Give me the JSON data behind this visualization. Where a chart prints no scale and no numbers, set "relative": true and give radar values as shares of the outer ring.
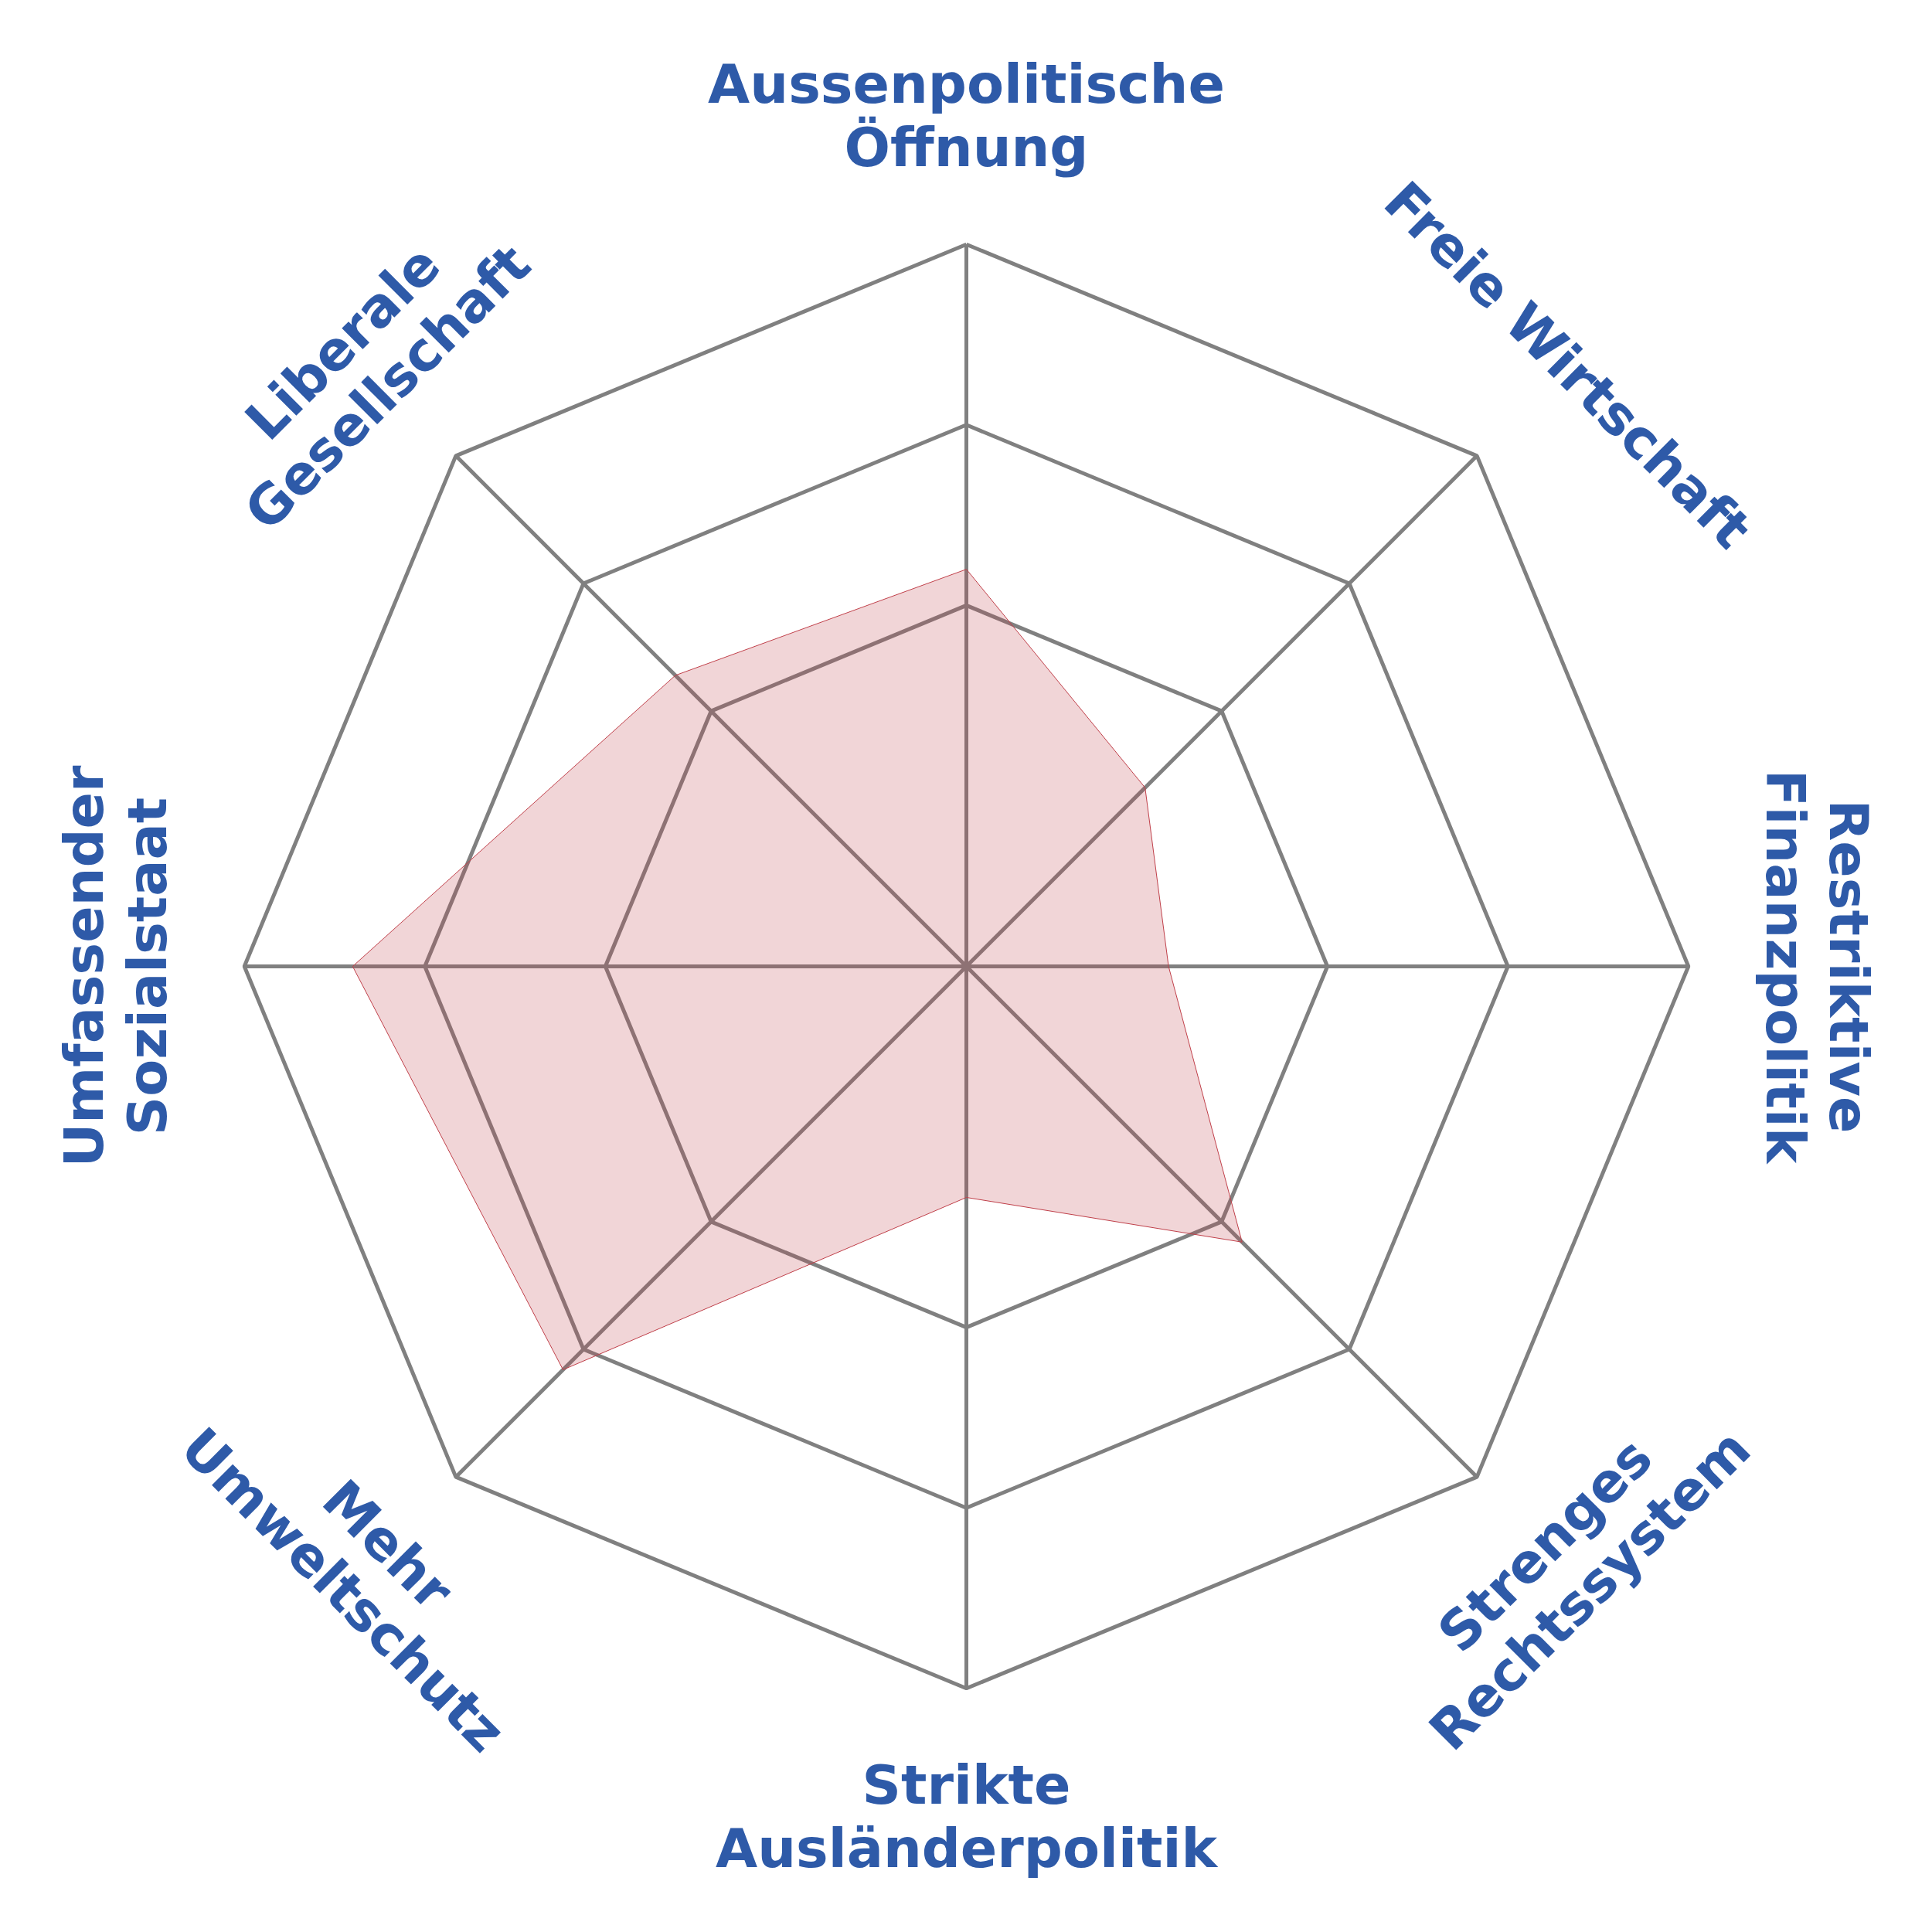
{
  "chart_data": {
    "type": "radar",
    "relative": true,
    "grid": true,
    "categories": [
      "Aussenpolitische\nÖffnung",
      "Freie Wirtschaft",
      "Restriktive\nFinanzpolitik",
      "Strenges\nRechtssystem",
      "Strikte\nAusländerpolitik",
      "Mehr\nUmweltschutz",
      "Umfassender\nSozialstaat",
      "Liberale\nGesellschaft"
    ],
    "series": [
      {
        "color": "#c0404a",
        "values": [
          0.55,
          0.35,
          0.28,
          0.54,
          0.32,
          0.79,
          0.85,
          0.57
        ]
      }
    ]
  }
}
